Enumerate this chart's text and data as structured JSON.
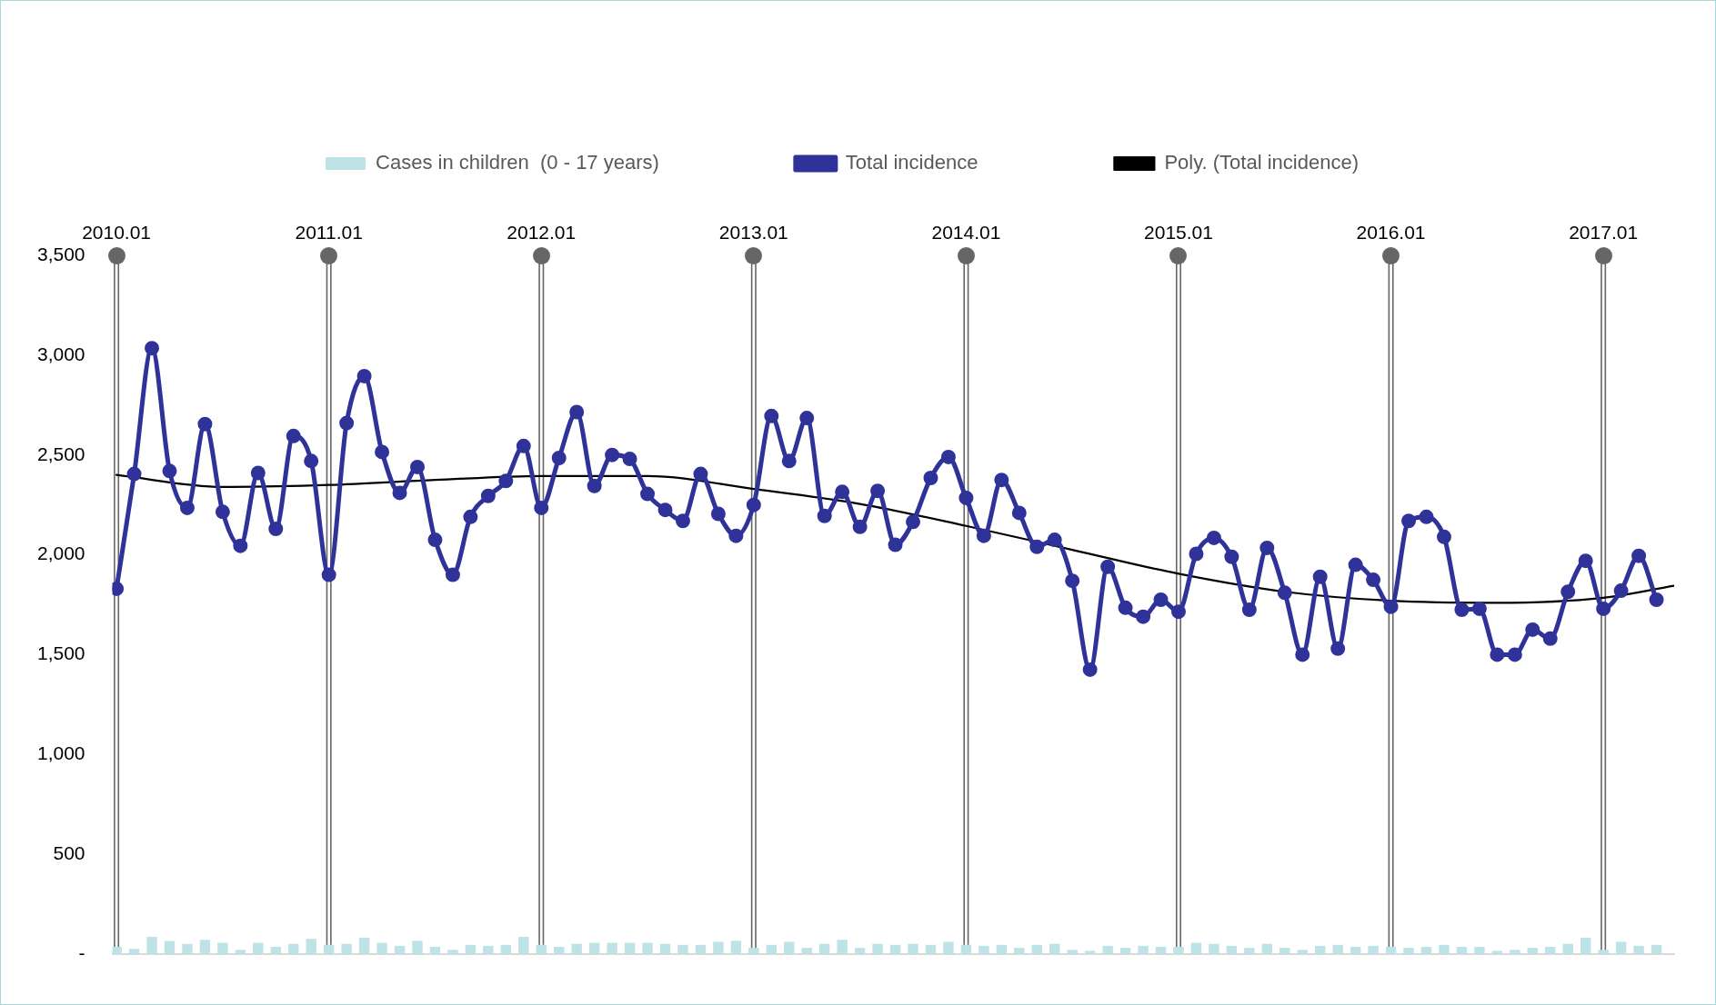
{
  "chart_data": {
    "type": "line",
    "x": [
      "2010-01",
      "2010-02",
      "2010-03",
      "2010-04",
      "2010-05",
      "2010-06",
      "2010-07",
      "2010-08",
      "2010-09",
      "2010-10",
      "2010-11",
      "2010-12",
      "2011-01",
      "2011-02",
      "2011-03",
      "2011-04",
      "2011-05",
      "2011-06",
      "2011-07",
      "2011-08",
      "2011-09",
      "2011-10",
      "2011-11",
      "2011-12",
      "2012-01",
      "2012-02",
      "2012-03",
      "2012-04",
      "2012-05",
      "2012-06",
      "2012-07",
      "2012-08",
      "2012-09",
      "2012-10",
      "2012-11",
      "2012-12",
      "2013-01",
      "2013-02",
      "2013-03",
      "2013-04",
      "2013-05",
      "2013-06",
      "2013-07",
      "2013-08",
      "2013-09",
      "2013-10",
      "2013-11",
      "2013-12",
      "2014-01",
      "2014-02",
      "2014-03",
      "2014-04",
      "2014-05",
      "2014-06",
      "2014-07",
      "2014-08",
      "2014-09",
      "2014-10",
      "2014-11",
      "2014-12",
      "2015-01",
      "2015-02",
      "2015-03",
      "2015-04",
      "2015-05",
      "2015-06",
      "2015-07",
      "2015-08",
      "2015-09",
      "2015-10",
      "2015-11",
      "2015-12",
      "2016-01",
      "2016-02",
      "2016-03",
      "2016-04",
      "2016-05",
      "2016-06",
      "2016-07",
      "2016-08",
      "2016-09",
      "2016-10",
      "2016-11",
      "2016-12",
      "2017-01",
      "2017-02",
      "2017-03",
      "2017-04"
    ],
    "series": [
      {
        "name": "Cases in children  (0 - 17 years)",
        "type": "bar",
        "color": "#bde3e6",
        "values": [
          35,
          25,
          85,
          65,
          50,
          70,
          55,
          20,
          55,
          35,
          50,
          75,
          45,
          50,
          80,
          55,
          40,
          65,
          35,
          20,
          45,
          40,
          45,
          85,
          45,
          35,
          50,
          55,
          55,
          55,
          55,
          50,
          45,
          45,
          60,
          65,
          30,
          45,
          60,
          30,
          50,
          70,
          30,
          50,
          45,
          50,
          45,
          60,
          45,
          40,
          45,
          30,
          45,
          50,
          20,
          15,
          40,
          30,
          40,
          35,
          35,
          55,
          50,
          40,
          30,
          50,
          30,
          20,
          40,
          45,
          35,
          40,
          35,
          30,
          35,
          45,
          35,
          35,
          15,
          20,
          30,
          35,
          50,
          80,
          20,
          60,
          40,
          45
        ]
      },
      {
        "name": "Total incidence",
        "color": "#2f3399",
        "values": [
          1830,
          2405,
          3035,
          2420,
          2235,
          2655,
          2215,
          2045,
          2410,
          2130,
          2595,
          2470,
          1900,
          2660,
          2895,
          2515,
          2310,
          2440,
          2075,
          1900,
          2190,
          2295,
          2370,
          2545,
          2235,
          2485,
          2715,
          2345,
          2500,
          2480,
          2305,
          2225,
          2170,
          2405,
          2205,
          2095,
          2250,
          2695,
          2470,
          2685,
          2195,
          2315,
          2140,
          2320,
          2050,
          2165,
          2385,
          2490,
          2285,
          2095,
          2375,
          2210,
          2040,
          2075,
          1870,
          1425,
          1940,
          1735,
          1690,
          1775,
          1715,
          2005,
          2085,
          1990,
          1725,
          2035,
          1810,
          1500,
          1890,
          1530,
          1950,
          1875,
          1740,
          2170,
          2190,
          2090,
          1725,
          1730,
          1500,
          1500,
          1625,
          1580,
          1815,
          1970,
          1730,
          1820,
          1995,
          1775
        ]
      },
      {
        "name": "Poly. (Total incidence)",
        "type": "line",
        "color": "#000000",
        "marker": "none",
        "x": [
          "2010-01",
          "2010-07",
          "2011-01",
          "2011-07",
          "2012-01",
          "2012-07",
          "2013-01",
          "2013-07",
          "2014-01",
          "2014-07",
          "2015-01",
          "2015-07",
          "2016-01",
          "2016-07",
          "2017-01",
          "2017-05"
        ],
        "values": [
          2400,
          2340,
          2350,
          2375,
          2395,
          2395,
          2330,
          2255,
          2145,
          2025,
          1905,
          1815,
          1770,
          1760,
          1785,
          1845
        ]
      }
    ],
    "xlim": [
      "2009-12-24",
      "2017-05"
    ],
    "xticks": [
      {
        "value": "2010-01",
        "label": "2010.01"
      },
      {
        "value": "2011-01",
        "label": "2011.01"
      },
      {
        "value": "2012-01",
        "label": "2012.01"
      },
      {
        "value": "2013-01",
        "label": "2013.01"
      },
      {
        "value": "2014-01",
        "label": "2014.01"
      },
      {
        "value": "2015-01",
        "label": "2015.01"
      },
      {
        "value": "2016-01",
        "label": "2016.01"
      },
      {
        "value": "2017-01",
        "label": "2017.01"
      }
    ],
    "ylim": [
      0,
      3500
    ],
    "yticks": [
      {
        "value": 0,
        "label": "-"
      },
      {
        "value": 500,
        "label": "500"
      },
      {
        "value": 1000,
        "label": "1,000"
      },
      {
        "value": 1500,
        "label": "1,500"
      },
      {
        "value": 2000,
        "label": "2,000"
      },
      {
        "value": 2500,
        "label": "2,500"
      },
      {
        "value": 3000,
        "label": "3,000"
      },
      {
        "value": 3500,
        "label": "3,500"
      }
    ],
    "grid": "x",
    "legend": "top",
    "marker": "circle",
    "line_style": "solid"
  }
}
